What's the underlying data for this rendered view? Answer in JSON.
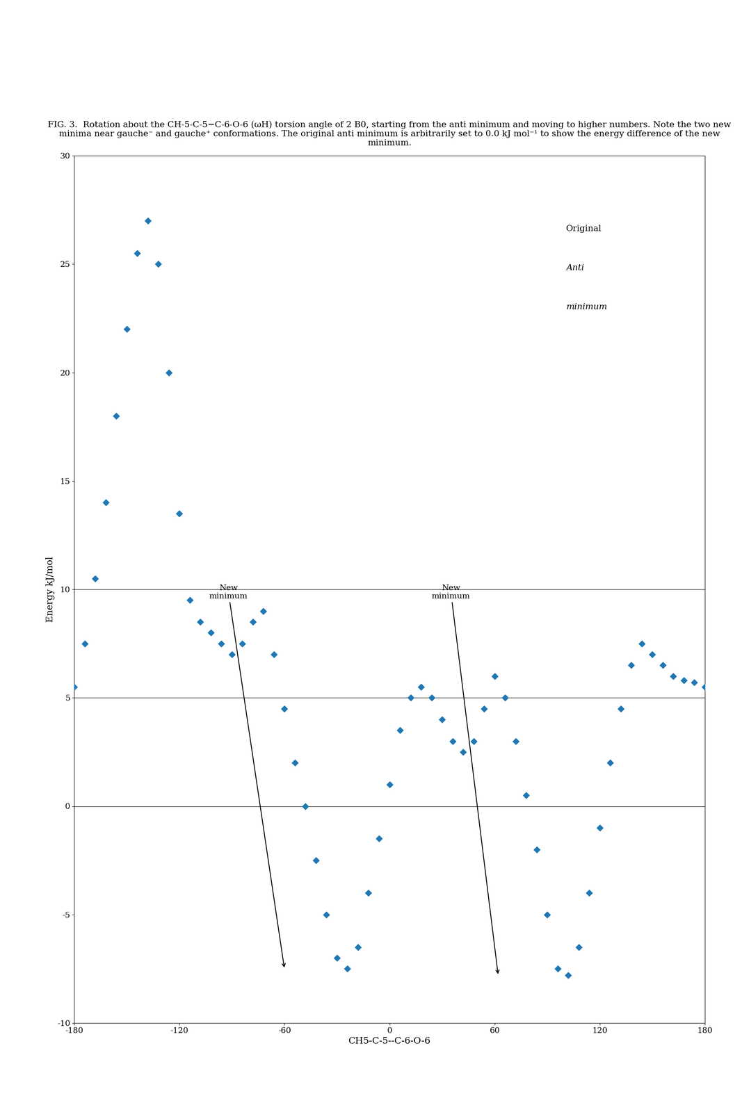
{
  "chart_data": {
    "type": "scatter",
    "title": "FIG. 3.  Rotation about the CH-5-C-5−C-6-O-6 (ωH) torsion angle of 2 B0, starting from the anti minimum and moving to higher numbers. Note the two new minima near gauche⁻ and gauche⁺ conformations. The original anti minimum is arbitrarily set to 0.0 kJ mol⁻¹ to show the energy difference of the new minimum.",
    "x_label": "CH5-C-5--C-6-O-6",
    "y_label": "Energy kJ/mol",
    "x": [
      -180,
      -174,
      -168,
      -162,
      -156,
      -150,
      -144,
      -138,
      -132,
      -126,
      -120,
      -114,
      -108,
      -102,
      -96,
      -90,
      -84,
      -78,
      -72,
      -66,
      -60,
      -54,
      -48,
      -42,
      -36,
      -30,
      -24,
      -18,
      -12,
      -6,
      0,
      6,
      12,
      18,
      24,
      30,
      36,
      42,
      48,
      54,
      60,
      66,
      72,
      78,
      84,
      90,
      96,
      102,
      108,
      114,
      120,
      126,
      132,
      138,
      144,
      150,
      156,
      162,
      168,
      174,
      180
    ],
    "values": [
      5.5,
      7.5,
      10.5,
      14.0,
      18.0,
      22.0,
      25.5,
      27.0,
      25.0,
      20.0,
      13.5,
      9.5,
      8.5,
      8.0,
      7.5,
      7.0,
      7.5,
      8.5,
      9.0,
      7.0,
      4.5,
      2.0,
      0.0,
      -2.5,
      -5.0,
      -7.0,
      -7.5,
      -6.5,
      -4.0,
      -1.5,
      1.0,
      3.5,
      5.0,
      5.5,
      5.0,
      4.0,
      3.0,
      2.5,
      3.0,
      4.5,
      6.0,
      5.0,
      3.0,
      0.5,
      -2.0,
      -5.0,
      -7.5,
      -7.8,
      -6.5,
      -4.0,
      -1.0,
      2.0,
      4.5,
      6.5,
      7.5,
      7.0,
      6.5,
      6.0,
      5.8,
      5.7,
      5.5
    ],
    "marker": "diamond",
    "xlim": [
      -180,
      180
    ],
    "ylim": [
      -10,
      30
    ],
    "xticks": [
      -180,
      -120,
      -60,
      0,
      60,
      120,
      180
    ],
    "yticks": [
      -10,
      -5,
      0,
      5,
      10,
      15,
      20,
      25,
      30
    ],
    "reference_lines": [
      0,
      5,
      10
    ],
    "notes": [
      "Original",
      "Anti",
      "minimum"
    ],
    "annotations": [
      {
        "text": "New\nminimum",
        "x": -60,
        "y": -7.5,
        "text_x": -92,
        "text_y": 9.5
      },
      {
        "text": "New\nminimum",
        "x": 62,
        "y": -7.8,
        "text_x": 35,
        "text_y": 9.5
      }
    ],
    "grid": false
  }
}
